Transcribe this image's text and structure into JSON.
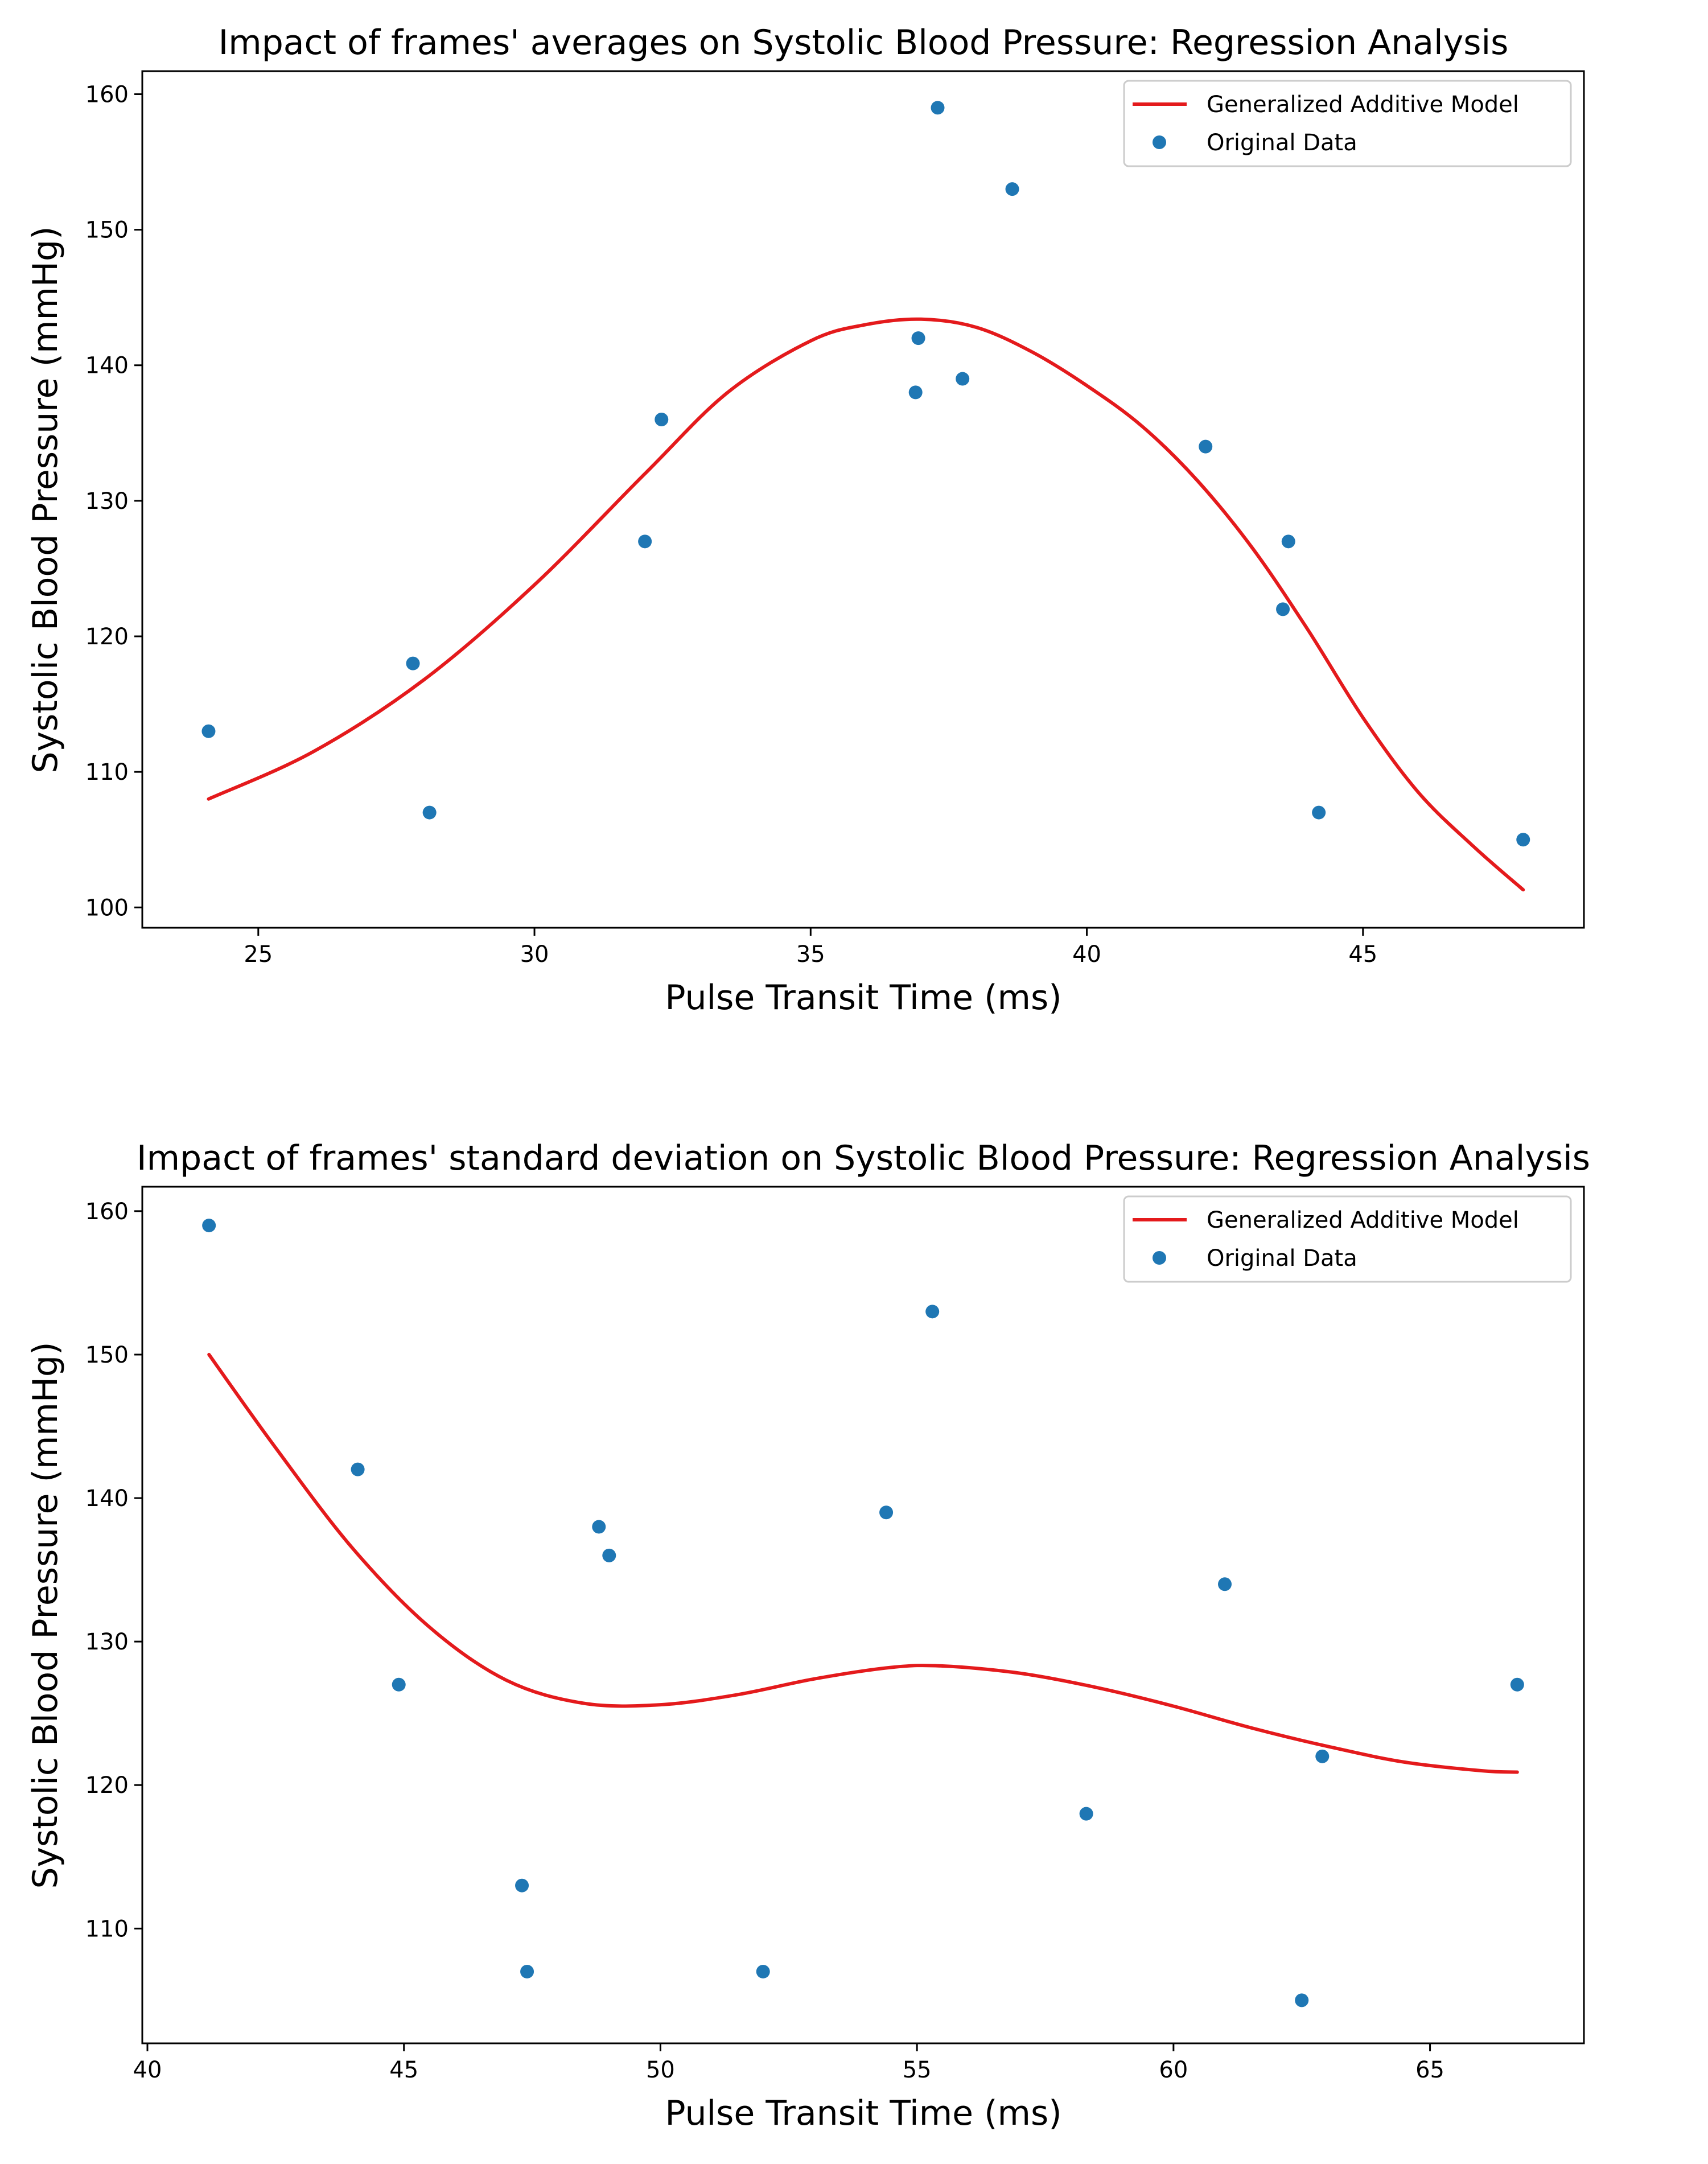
{
  "chart_data": [
    {
      "type": "scatter",
      "title": "Impact of frames' averages on Systolic Blood Pressure: Regression Analysis",
      "xlabel": "Pulse Transit Time (ms)",
      "ylabel": "Systolic Blood Pressure (mmHg)",
      "xlim": [
        22.9,
        49.0
      ],
      "ylim": [
        98.5,
        161.7
      ],
      "xticks": [
        25,
        30,
        35,
        40,
        45
      ],
      "yticks": [
        100,
        110,
        120,
        130,
        140,
        150,
        160
      ],
      "legend": {
        "placement": "top-right",
        "entries": [
          "Generalized Additive Model",
          "Original Data"
        ]
      },
      "series": [
        {
          "name": "Generalized Additive Model",
          "kind": "line",
          "color": "#e41a1c",
          "x": [
            24.1,
            26,
            28,
            30,
            32,
            33.5,
            35,
            36,
            37,
            38,
            39,
            40,
            41,
            42,
            43,
            44,
            45,
            46,
            47,
            47.9
          ],
          "y": [
            108.0,
            111.5,
            116.8,
            123.8,
            132.0,
            138.0,
            141.8,
            143.0,
            143.4,
            142.8,
            141.0,
            138.5,
            135.5,
            131.5,
            126.5,
            120.5,
            114.0,
            108.5,
            104.5,
            101.3
          ]
        },
        {
          "name": "Original Data",
          "kind": "scatter",
          "color": "#1f77b4",
          "x": [
            24.1,
            27.8,
            28.1,
            32.0,
            32.3,
            36.9,
            36.95,
            37.3,
            37.75,
            38.65,
            42.15,
            43.55,
            43.65,
            44.2,
            47.9
          ],
          "y": [
            113,
            118,
            107,
            127,
            136,
            138,
            142,
            159,
            139,
            153,
            134,
            122,
            127,
            107,
            105
          ]
        }
      ]
    },
    {
      "type": "scatter",
      "title": "Impact of frames' standard deviation on Systolic Blood Pressure: Regression Analysis",
      "xlabel": "Pulse Transit Time (ms)",
      "ylabel": "Systolic Blood Pressure (mmHg)",
      "xlim": [
        39.9,
        68.0
      ],
      "ylim": [
        102.0,
        161.7
      ],
      "xticks": [
        40,
        45,
        50,
        55,
        60,
        65
      ],
      "yticks": [
        110,
        120,
        130,
        140,
        150,
        160
      ],
      "legend": {
        "placement": "top-right",
        "entries": [
          "Generalized Additive Model",
          "Original Data"
        ]
      },
      "series": [
        {
          "name": "Generalized Additive Model",
          "kind": "line",
          "color": "#e41a1c",
          "x": [
            41.2,
            42.5,
            44,
            45.5,
            47,
            48.5,
            50,
            51.5,
            53,
            54.5,
            55.5,
            57,
            58.5,
            60,
            61.5,
            63,
            64.5,
            66,
            66.7
          ],
          "y": [
            150.0,
            143.5,
            136.5,
            131.0,
            127.3,
            125.7,
            125.6,
            126.3,
            127.4,
            128.2,
            128.3,
            127.8,
            126.8,
            125.5,
            124.0,
            122.7,
            121.6,
            121.0,
            120.9
          ]
        },
        {
          "name": "Original Data",
          "kind": "scatter",
          "color": "#1f77b4",
          "x": [
            41.2,
            44.1,
            44.9,
            47.3,
            47.4,
            48.8,
            49.0,
            52.0,
            54.4,
            55.3,
            58.3,
            61.0,
            62.5,
            62.9,
            66.7
          ],
          "y": [
            159,
            142,
            127,
            113,
            107,
            138,
            136,
            107,
            139,
            153,
            118,
            134,
            105,
            122,
            127
          ]
        }
      ]
    }
  ]
}
